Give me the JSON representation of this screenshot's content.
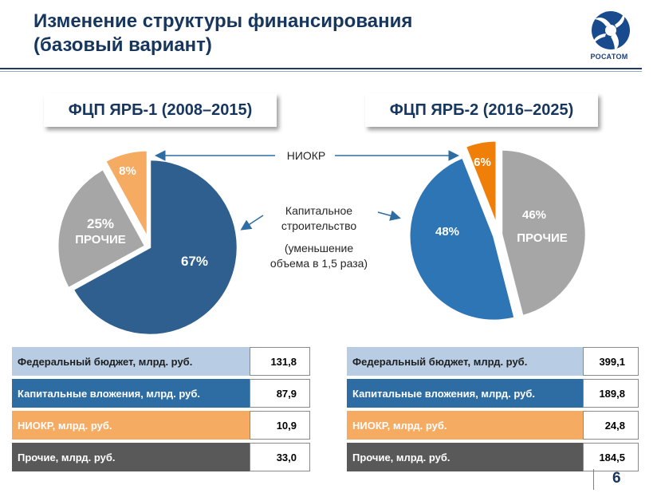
{
  "title": {
    "line1": "Изменение структуры финансирования",
    "line2": "(базовый вариант)"
  },
  "logo": {
    "text": "РОСАТОМ",
    "icon": "rosatom-logo"
  },
  "annotations": {
    "niokr": "НИОКР",
    "capital_line1": "Капитальное",
    "capital_line2": "строительство",
    "reduction_line1": "(уменьшение",
    "reduction_line2": "объема в 1,5 раза)"
  },
  "chart_data": [
    {
      "type": "pie",
      "title": "ФЦП ЯРБ-1 (2008–2015)",
      "slices": [
        {
          "label": "Капитальное строительство",
          "value": 67,
          "display": "67%",
          "color": "#2e5f8e"
        },
        {
          "label": "ПРОЧИЕ",
          "value": 25,
          "display": "25%",
          "sublabel": "ПРОЧИЕ",
          "color": "#a6a6a6"
        },
        {
          "label": "НИОКР",
          "value": 8,
          "display": "8%",
          "color": "#f6ab63"
        }
      ]
    },
    {
      "type": "pie",
      "title": "ФЦП ЯРБ-2 (2016–2025)",
      "slices": [
        {
          "label": "ПРОЧИЕ",
          "value": 46,
          "display": "46%",
          "sublabel": "ПРОЧИЕ",
          "color": "#a6a6a6"
        },
        {
          "label": "Капитальное строительство",
          "value": 48,
          "display": "48%",
          "color": "#2e75b6"
        },
        {
          "label": "НИОКР",
          "value": 6,
          "display": "6%",
          "color": "#f07f09"
        }
      ]
    }
  ],
  "tables": [
    {
      "rows": [
        {
          "label": "Федеральный бюджет, млрд. руб.",
          "value": "131,8"
        },
        {
          "label": "Капитальные вложения, млрд. руб.",
          "value": "87,9"
        },
        {
          "label": "НИОКР, млрд. руб.",
          "value": "10,9"
        },
        {
          "label": "Прочие, млрд. руб.",
          "value": "33,0"
        }
      ]
    },
    {
      "rows": [
        {
          "label": "Федеральный бюджет, млрд. руб.",
          "value": "399,1"
        },
        {
          "label": "Капитальные вложения, млрд. руб.",
          "value": "189,8"
        },
        {
          "label": "НИОКР, млрд. руб.",
          "value": "24,8"
        },
        {
          "label": "Прочие, млрд. руб.",
          "value": "184,5"
        }
      ]
    }
  ],
  "page_number": "6"
}
